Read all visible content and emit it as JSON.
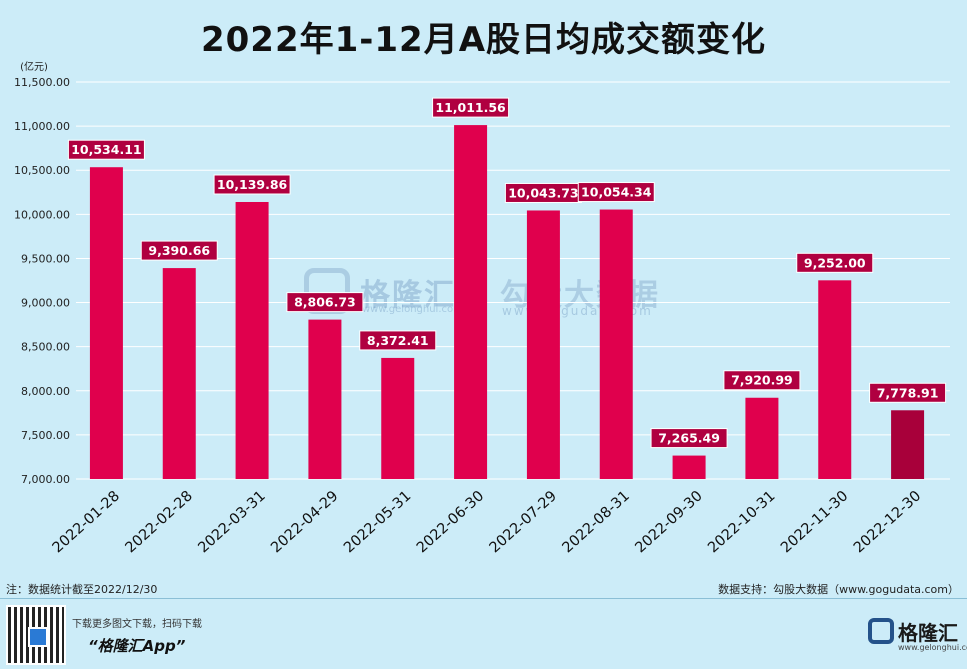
{
  "title": "2022年1-12月A股日均成交额变化",
  "chart_data": {
    "type": "bar",
    "title": "2022年1-12月A股日均成交额变化",
    "ylabel": "(亿元)",
    "xlabel": "",
    "ylim": [
      7000,
      11500
    ],
    "yticks": [
      7000,
      7500,
      8000,
      8500,
      9000,
      9500,
      10000,
      10500,
      11000,
      11500
    ],
    "ytick_labels": [
      "7,000.00",
      "7,500.00",
      "8,000.00",
      "8,500.00",
      "9,000.00",
      "9,500.00",
      "10,000.00",
      "10,500.00",
      "11,000.00",
      "11,500.00"
    ],
    "grid": true,
    "categories": [
      "2022-01-28",
      "2022-02-28",
      "2022-03-31",
      "2022-04-29",
      "2022-05-31",
      "2022-06-30",
      "2022-07-29",
      "2022-08-31",
      "2022-09-30",
      "2022-10-31",
      "2022-11-30",
      "2022-12-30"
    ],
    "values": [
      10534.11,
      9390.66,
      10139.86,
      8806.73,
      8372.41,
      11011.56,
      10043.73,
      10054.34,
      7265.49,
      7920.99,
      9252.0,
      7778.91
    ],
    "value_labels": [
      "10,534.11",
      "9,390.66",
      "10,139.86",
      "8,806.73",
      "8,372.41",
      "11,011.56",
      "10,043.73",
      "10,054.34",
      "7,265.49",
      "7,920.99",
      "9,252.00",
      "7,778.91"
    ],
    "colors": {
      "bar": "#e0004d",
      "bar_highlight": "#a8003a",
      "label_bg": "#b00040",
      "grid": "#ffffff"
    }
  },
  "watermark": {
    "brand": "格隆汇",
    "brand_url": "www.gelonghui.com",
    "product": "勾股大数据",
    "product_url": "www.gogudata.com"
  },
  "footer": {
    "note": "注：数据统计截至2022/12/30",
    "source": "数据支持：勾股大数据（www.gogudata.com）",
    "qr_caption": "下载更多图文下载，扫码下载",
    "app_name": "“格隆汇App”",
    "brand_name": "格隆汇",
    "brand_url": "www.gelonghui.com"
  }
}
